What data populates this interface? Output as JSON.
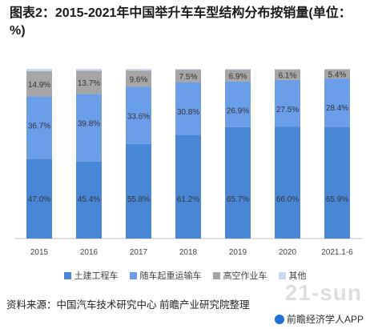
{
  "title": "图表2：2015-2021年中国举升车车型结构分布按销量(单位：%)",
  "source": "资料来源：中国汽车技术研究中心 前瞻产业研究院整理",
  "brand": "前瞻经济学人APP",
  "watermark": "21-sun",
  "chart_data": {
    "type": "bar",
    "stacked": true,
    "normalized": true,
    "categories": [
      "2015",
      "2016",
      "2017",
      "2018",
      "2019",
      "2020",
      "2021.1-6"
    ],
    "series": [
      {
        "name": "土建工程车",
        "color": "#4a86d6",
        "values": [
          47.0,
          45.4,
          55.8,
          61.2,
          65.7,
          66.0,
          65.9
        ],
        "labels": [
          "47.0%",
          "45.4%",
          "55.8%",
          "61.2%",
          "65.7%",
          "66.0%",
          "65.9%"
        ]
      },
      {
        "name": "随车起重运输车",
        "color": "#6a9ee8",
        "values": [
          36.7,
          39.8,
          33.6,
          30.8,
          26.9,
          27.5,
          28.4
        ],
        "labels": [
          "36.7%",
          "39.8%",
          "33.6%",
          "30.8%",
          "26.9%",
          "27.5%",
          "28.4%"
        ]
      },
      {
        "name": "高空作业车",
        "color": "#a6a6a6",
        "values": [
          14.9,
          13.7,
          9.6,
          7.5,
          6.9,
          6.1,
          5.4
        ],
        "labels": [
          "14.9%",
          "13.7%",
          "9.6%",
          "7.5%",
          "6.9%",
          "6.1%",
          "5.4%"
        ]
      },
      {
        "name": "其他",
        "color": "#c9d8f2",
        "values": [
          1.4,
          1.1,
          1.0,
          0.5,
          0.5,
          0.4,
          0.3
        ],
        "labels": [
          "",
          "",
          "",
          "",
          "",
          "",
          ""
        ]
      }
    ],
    "ylim": [
      0,
      100
    ],
    "grid": false,
    "legend": "bottom"
  }
}
